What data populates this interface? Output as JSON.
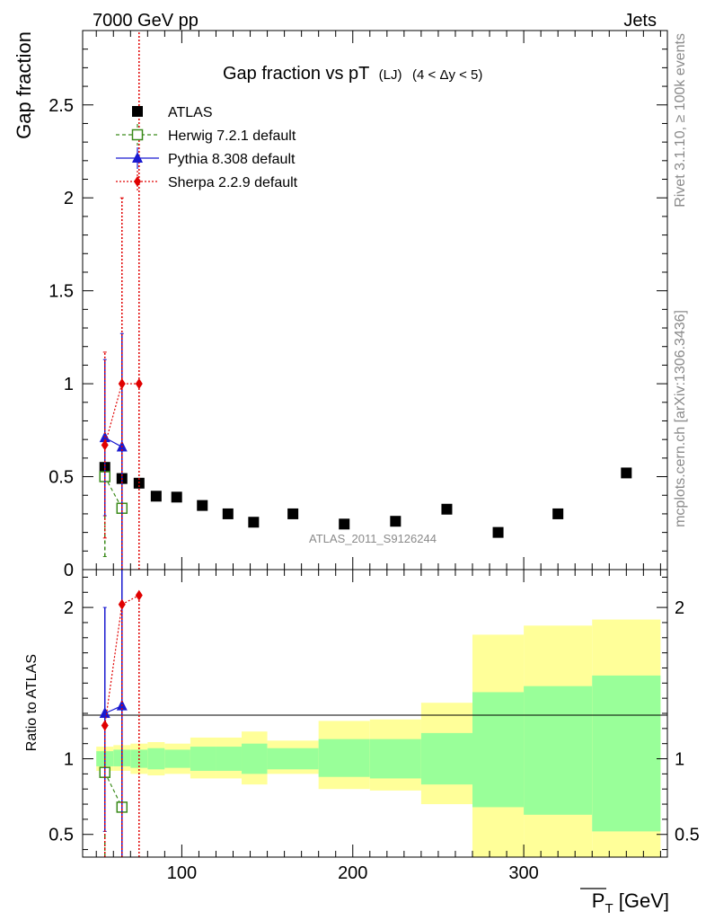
{
  "header": {
    "left": "7000 GeV pp",
    "right": "Jets"
  },
  "side": {
    "rivet": "Rivet 3.1.10, ≥ 100k events",
    "mcplots": "mcplots.cern.ch [arXiv:1306.3436]"
  },
  "chart_data": [
    {
      "type": "scatter",
      "panel": "main",
      "title": "Gap fraction vs pT",
      "title_sub": "(LJ)",
      "title_range": "(4 < Δy < 5)",
      "ylabel": "Gap fraction",
      "xlim": [
        42,
        384
      ],
      "ylim": [
        0,
        2.9
      ],
      "yticks": [
        0,
        0.5,
        1,
        1.5,
        2,
        2.5
      ],
      "ytick_labels": [
        "0",
        "0.5",
        "1",
        "1.5",
        "2",
        "2.5"
      ],
      "watermark": "ATLAS_2011_S9126244",
      "legend": [
        "ATLAS",
        "Herwig 7.2.1 default",
        "Pythia 8.308 default",
        "Sherpa 2.2.9 default"
      ],
      "series": [
        {
          "name": "ATLAS",
          "color": "#000000",
          "marker": "square",
          "x": [
            55,
            65,
            75,
            85,
            97,
            112,
            127,
            142,
            165,
            195,
            225,
            255,
            285,
            320,
            360
          ],
          "y": [
            0.55,
            0.49,
            0.465,
            0.395,
            0.39,
            0.345,
            0.3,
            0.255,
            0.3,
            0.245,
            0.26,
            0.325,
            0.2,
            0.3,
            0.52
          ]
        },
        {
          "name": "Herwig 7.2.1 default",
          "color": "#3a8a1a",
          "marker": "open-square",
          "line": "dashed",
          "x": [
            55,
            65
          ],
          "y": [
            0.5,
            0.33
          ],
          "err_lo": [
            0.43,
            0.33
          ],
          "err_hi": [
            0.0,
            0.0
          ]
        },
        {
          "name": "Pythia 8.308 default",
          "color": "#1a1ad0",
          "marker": "triangle",
          "line": "solid",
          "x": [
            55,
            65
          ],
          "y": [
            0.71,
            0.66
          ],
          "err_lo": [
            0.42,
            0.66
          ],
          "err_hi": [
            0.42,
            0.61
          ]
        },
        {
          "name": "Sherpa 2.2.9 default",
          "color": "#e00000",
          "marker": "diamond",
          "line": "dotted",
          "x": [
            55,
            65,
            75
          ],
          "y": [
            0.67,
            1.0,
            1.0
          ],
          "err_lo": [
            0.5,
            1.0,
            1.0
          ],
          "err_hi": [
            0.5,
            1.0,
            1.9
          ]
        }
      ]
    },
    {
      "type": "scatter",
      "panel": "ratio",
      "ylabel": "Ratio to ATLAS",
      "xlabel": "P",
      "xlabel_sub": "T",
      "xlabel_unit": " [GeV]",
      "xlim": [
        42,
        384
      ],
      "ylim": [
        0.35,
        2.25
      ],
      "xticks": [
        100,
        200,
        300
      ],
      "xtick_labels": [
        "100",
        "200",
        "300"
      ],
      "yticks": [
        0.5,
        1,
        2
      ],
      "ytick_labels": [
        "0.5",
        "1",
        "2"
      ],
      "bands": {
        "edges": [
          50,
          60,
          70,
          80,
          90,
          105,
          120,
          135,
          150,
          180,
          210,
          240,
          270,
          300,
          340,
          380
        ],
        "yellow_lo": [
          0.92,
          0.92,
          0.9,
          0.89,
          0.9,
          0.87,
          0.87,
          0.83,
          0.9,
          0.8,
          0.79,
          0.7,
          0.3,
          0.3,
          0.3
        ],
        "yellow_hi": [
          1.08,
          1.09,
          1.1,
          1.11,
          1.1,
          1.14,
          1.14,
          1.18,
          1.12,
          1.25,
          1.26,
          1.37,
          1.82,
          1.88,
          1.92
        ],
        "green_lo": [
          0.95,
          0.95,
          0.94,
          0.93,
          0.94,
          0.92,
          0.92,
          0.9,
          0.93,
          0.88,
          0.87,
          0.83,
          0.68,
          0.63,
          0.52
        ],
        "green_hi": [
          1.05,
          1.06,
          1.06,
          1.07,
          1.06,
          1.08,
          1.08,
          1.1,
          1.07,
          1.13,
          1.13,
          1.17,
          1.44,
          1.48,
          1.55
        ]
      },
      "series": [
        {
          "name": "Herwig 7.2.1 default",
          "color": "#3a8a1a",
          "x": [
            55,
            65
          ],
          "y": [
            0.91,
            0.68
          ],
          "err_lo": [
            0.56,
            0.0
          ],
          "err_hi": [
            0.0,
            0.0
          ]
        },
        {
          "name": "Pythia 8.308 default",
          "color": "#1a1ad0",
          "x": [
            55,
            65
          ],
          "y": [
            1.3,
            1.35
          ],
          "err_lo": [
            0.78,
            1.0
          ],
          "err_hi": [
            0.7,
            0.9
          ]
        },
        {
          "name": "Sherpa 2.2.9 default",
          "color": "#e00000",
          "x": [
            55,
            65,
            75
          ],
          "y": [
            1.22,
            2.02,
            2.08
          ],
          "err_lo": [
            1.0,
            1.8,
            1.8
          ],
          "err_hi": [
            0.0,
            0.0,
            0.0
          ]
        }
      ]
    }
  ]
}
